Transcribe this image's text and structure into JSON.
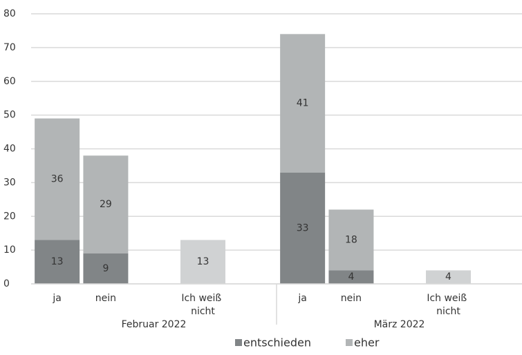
{
  "chart_data": {
    "type": "stacked_bar",
    "categories": [
      "ja",
      "nein",
      "Ich weiß nicht",
      "ja",
      "nein",
      "Ich weiß nicht"
    ],
    "groups": [
      "Februar 2022",
      "März 2022"
    ],
    "series": [
      {
        "name": "entschieden",
        "color": "#818587",
        "values": [
          13,
          9,
          null,
          33,
          4,
          null
        ]
      },
      {
        "name": "eher",
        "color": "#b2b5b6",
        "point_colors": [
          "#b2b5b6",
          "#b2b5b6",
          "#d0d2d3",
          "#b2b5b6",
          "#b2b5b6",
          "#d0d2d3"
        ],
        "values": [
          36,
          29,
          13,
          41,
          18,
          4
        ]
      }
    ],
    "ylim": [
      0,
      80
    ],
    "yticks": [
      0,
      10,
      20,
      30,
      40,
      50,
      60,
      70,
      80
    ],
    "grid": true,
    "legend": "bottom"
  }
}
